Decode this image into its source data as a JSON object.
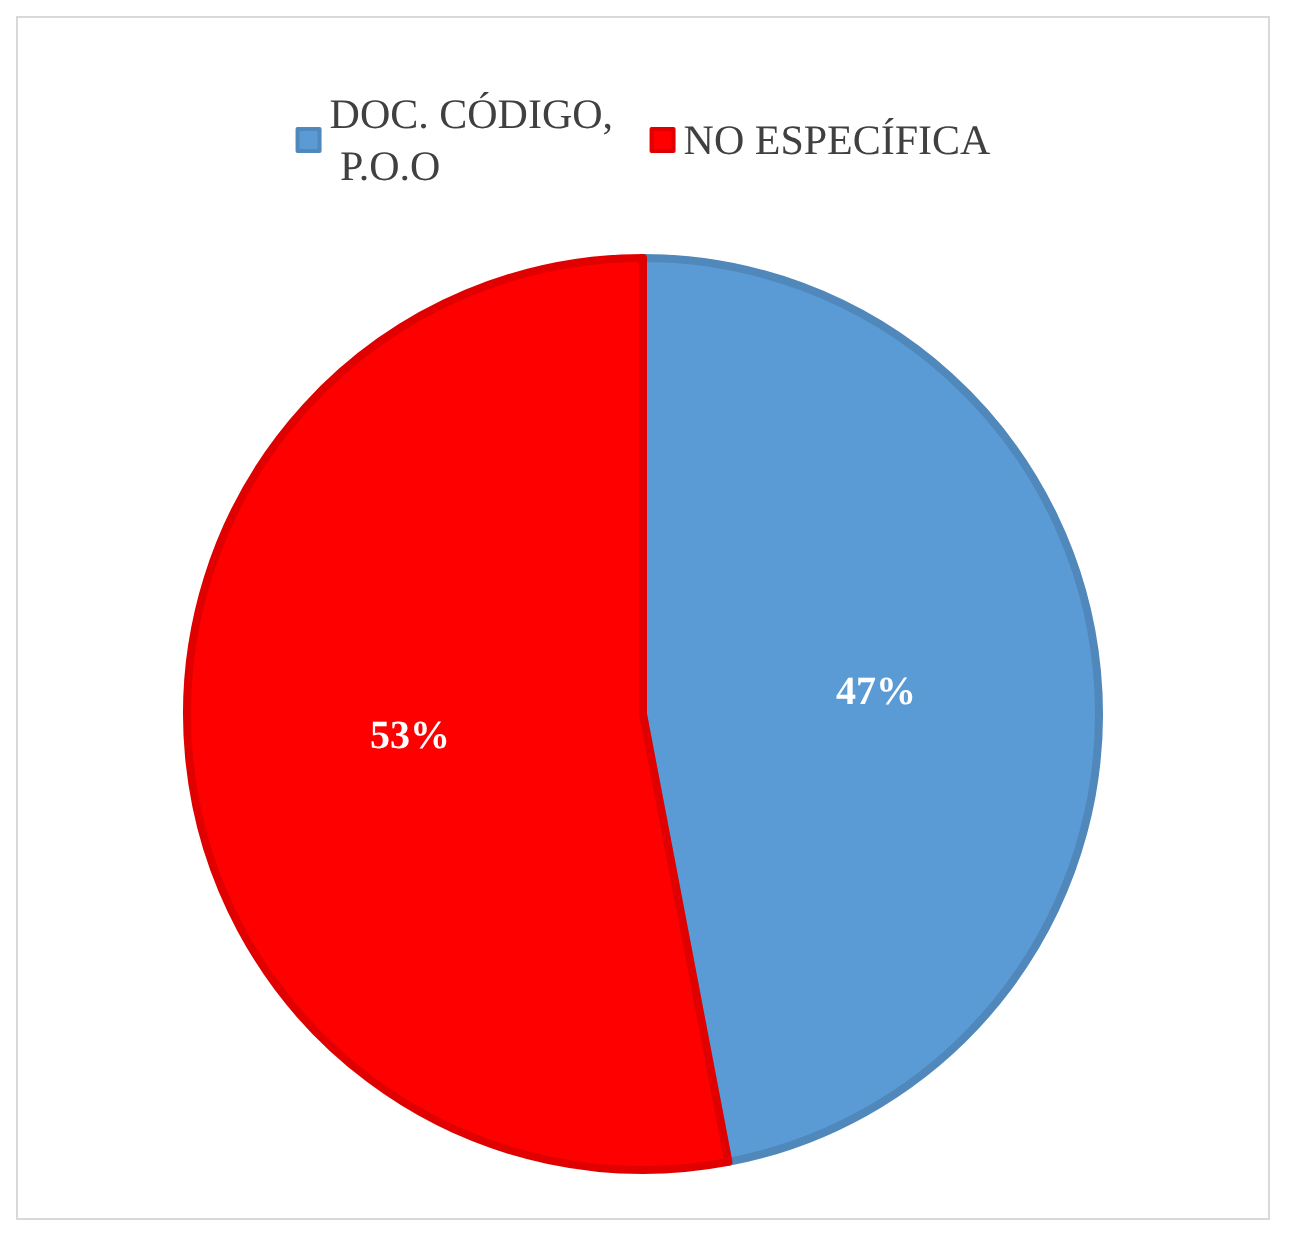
{
  "chart_data": {
    "type": "pie",
    "categories": [
      "DOC. CÓDIGO, P.O.O",
      "NO ESPECÍFICA"
    ],
    "values": [
      47,
      53
    ],
    "colors": [
      "#5b9bd5",
      "#ff0000"
    ],
    "value_labels": [
      "47%",
      "53%"
    ],
    "legend": "top"
  }
}
